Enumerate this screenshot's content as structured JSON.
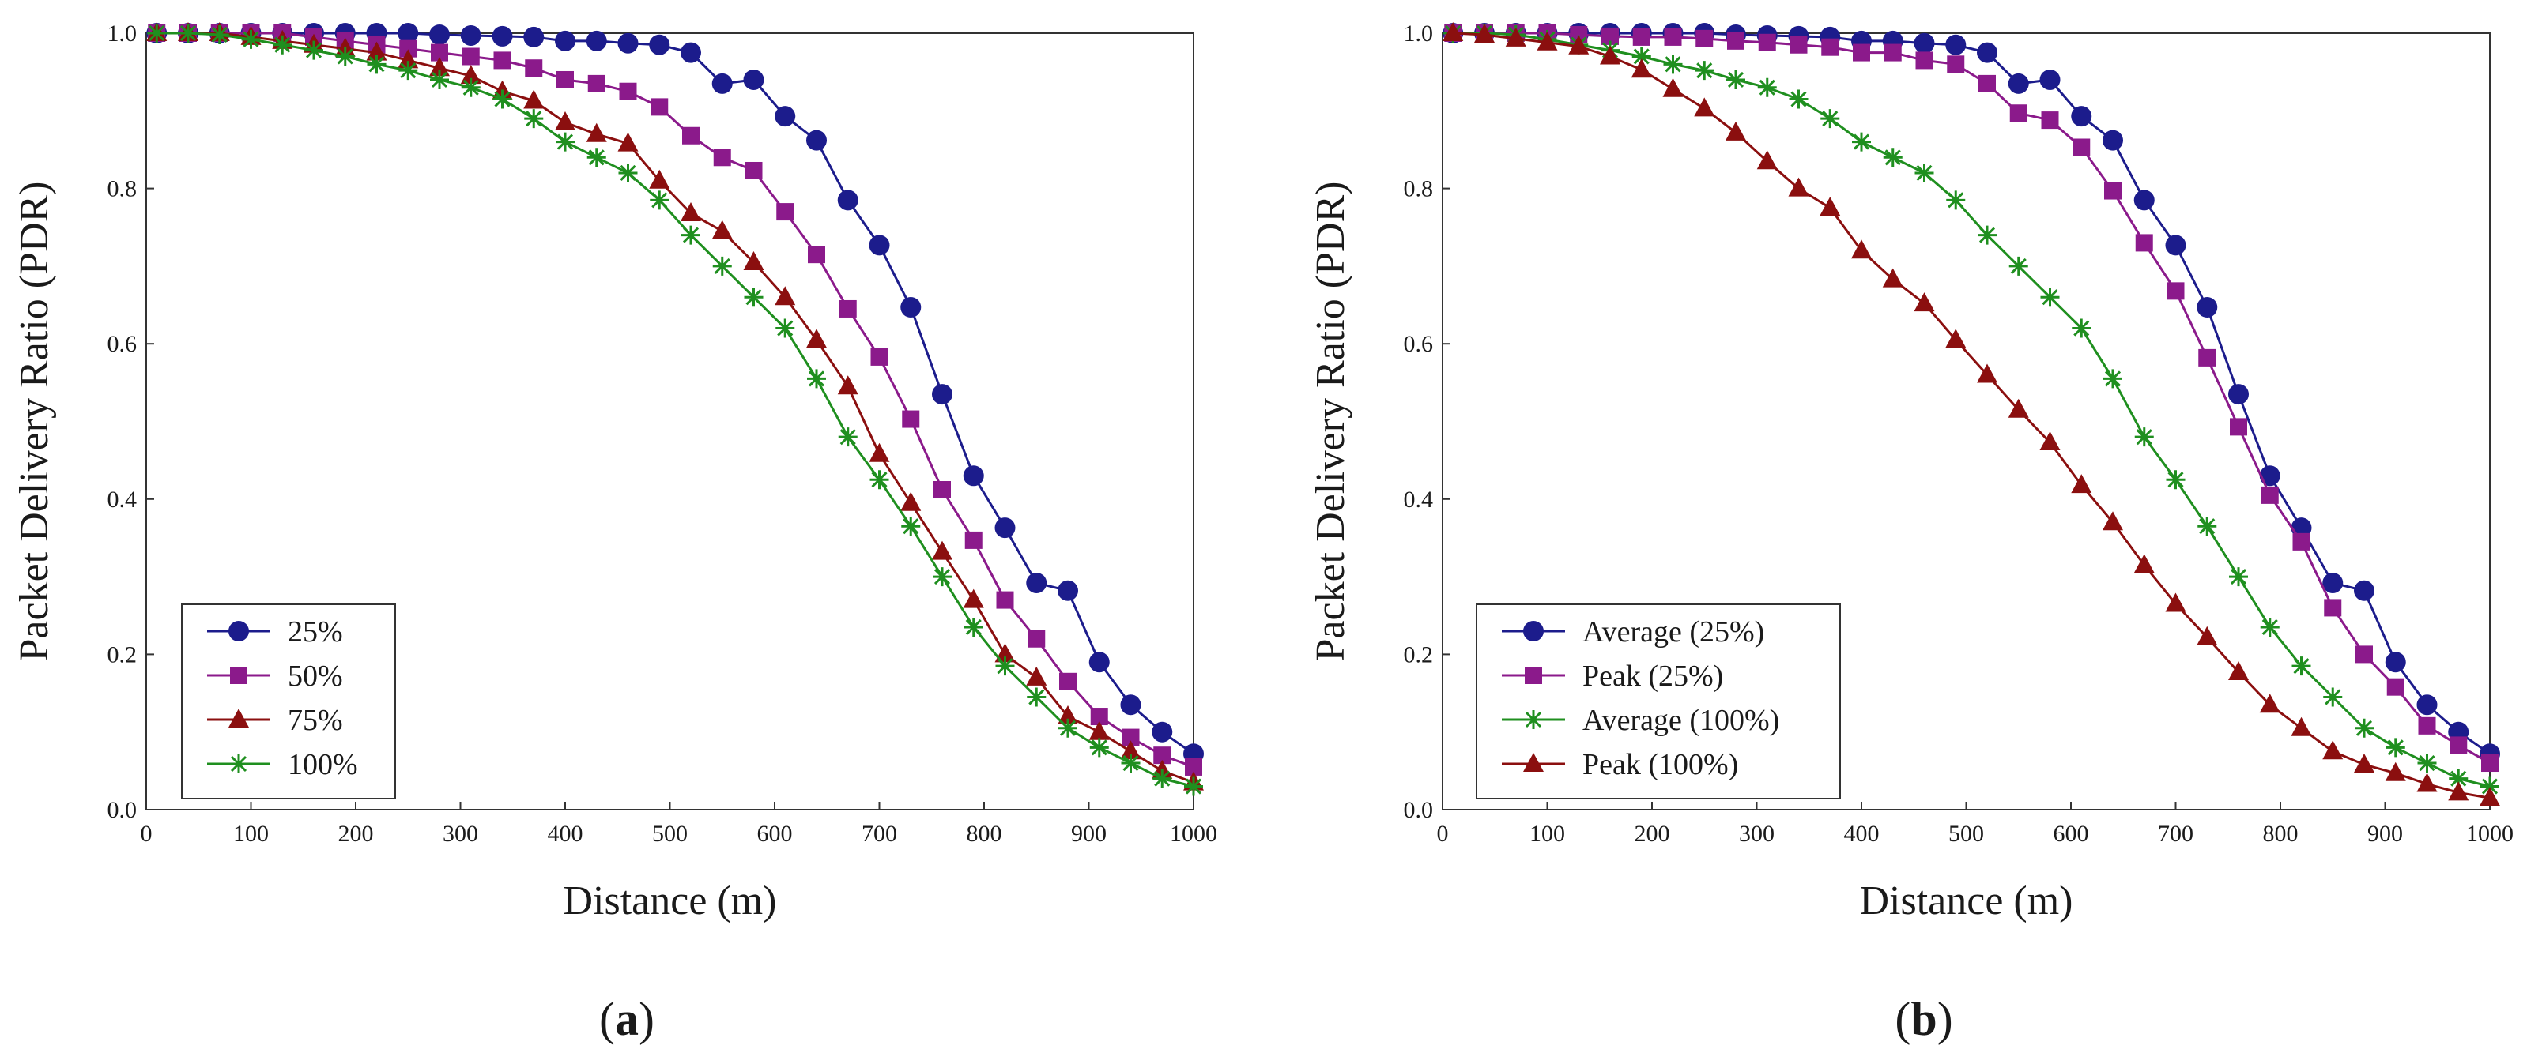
{
  "figure": {
    "panels": [
      {
        "label_open": "(",
        "label_letter": "a",
        "label_close": ")"
      },
      {
        "label_open": "(",
        "label_letter": "b",
        "label_close": ")"
      }
    ]
  },
  "colors": {
    "blue": "#1c1c8c",
    "purple": "#8b1a8b",
    "darkred": "#8b0f0f",
    "green": "#1f8f1f",
    "axis": "#333333"
  },
  "chart_data": [
    {
      "type": "line",
      "panel": "a",
      "xlabel": "Distance (m)",
      "ylabel": "Packet Delivery Ratio (PDR)",
      "xlim": [
        0,
        1000
      ],
      "ylim": [
        0,
        1
      ],
      "xticks": [
        "0",
        "100",
        "200",
        "300",
        "400",
        "500",
        "600",
        "700",
        "800",
        "900",
        "1000"
      ],
      "yticks": [
        "0.0",
        "0.2",
        "0.4",
        "0.6",
        "0.8",
        "1.0"
      ],
      "grid": false,
      "legend_position": "bottom-left",
      "x": [
        10,
        40,
        70,
        100,
        130,
        160,
        190,
        220,
        250,
        280,
        310,
        340,
        370,
        400,
        430,
        460,
        490,
        520,
        550,
        580,
        610,
        640,
        670,
        700,
        730,
        760,
        790,
        820,
        850,
        880,
        910,
        940,
        970,
        1000
      ],
      "series": [
        {
          "name": "25%",
          "color": "blue",
          "marker": "circle",
          "values": [
            1.0,
            1.0,
            1.0,
            1.0,
            1.0,
            1.0,
            1.0,
            1.0,
            1.0,
            0.998,
            0.997,
            0.996,
            0.995,
            0.99,
            0.99,
            0.987,
            0.985,
            0.975,
            0.935,
            0.94,
            0.893,
            0.862,
            0.785,
            0.727,
            0.647,
            0.535,
            0.43,
            0.363,
            0.292,
            0.282,
            0.19,
            0.135,
            0.1,
            0.072
          ]
        },
        {
          "name": "50%",
          "color": "purple",
          "marker": "square",
          "values": [
            1.0,
            1.0,
            1.0,
            1.0,
            1.0,
            0.995,
            0.99,
            0.985,
            0.98,
            0.975,
            0.97,
            0.965,
            0.955,
            0.94,
            0.935,
            0.925,
            0.905,
            0.868,
            0.84,
            0.823,
            0.77,
            0.715,
            0.645,
            0.583,
            0.503,
            0.412,
            0.347,
            0.27,
            0.22,
            0.165,
            0.12,
            0.093,
            0.07,
            0.055
          ]
        },
        {
          "name": "75%",
          "color": "darkred",
          "marker": "triangle",
          "values": [
            1.0,
            1.0,
            1.0,
            0.995,
            0.99,
            0.985,
            0.98,
            0.975,
            0.965,
            0.955,
            0.945,
            0.925,
            0.913,
            0.885,
            0.87,
            0.858,
            0.81,
            0.768,
            0.745,
            0.705,
            0.66,
            0.605,
            0.545,
            0.458,
            0.395,
            0.332,
            0.27,
            0.2,
            0.17,
            0.12,
            0.1,
            0.075,
            0.05,
            0.035
          ]
        },
        {
          "name": "100%",
          "color": "green",
          "marker": "star",
          "values": [
            1.0,
            1.0,
            0.998,
            0.992,
            0.985,
            0.978,
            0.97,
            0.96,
            0.952,
            0.94,
            0.93,
            0.915,
            0.89,
            0.86,
            0.84,
            0.82,
            0.785,
            0.74,
            0.7,
            0.66,
            0.62,
            0.555,
            0.48,
            0.425,
            0.365,
            0.3,
            0.235,
            0.185,
            0.145,
            0.105,
            0.08,
            0.06,
            0.04,
            0.03
          ]
        }
      ]
    },
    {
      "type": "line",
      "panel": "b",
      "xlabel": "Distance (m)",
      "ylabel": "Packet Delivery Ratio (PDR)",
      "xlim": [
        0,
        1000
      ],
      "ylim": [
        0,
        1
      ],
      "xticks": [
        "0",
        "100",
        "200",
        "300",
        "400",
        "500",
        "600",
        "700",
        "800",
        "900",
        "1000"
      ],
      "yticks": [
        "0.0",
        "0.2",
        "0.4",
        "0.6",
        "0.8",
        "1.0"
      ],
      "grid": false,
      "legend_position": "bottom-left",
      "x": [
        10,
        40,
        70,
        100,
        130,
        160,
        190,
        220,
        250,
        280,
        310,
        340,
        370,
        400,
        430,
        460,
        490,
        520,
        550,
        580,
        610,
        640,
        670,
        700,
        730,
        760,
        790,
        820,
        850,
        880,
        910,
        940,
        970,
        1000
      ],
      "series": [
        {
          "name": "Average (25%)",
          "color": "blue",
          "marker": "circle",
          "values": [
            1.0,
            1.0,
            1.0,
            1.0,
            1.0,
            1.0,
            1.0,
            1.0,
            1.0,
            0.998,
            0.997,
            0.996,
            0.995,
            0.99,
            0.99,
            0.987,
            0.985,
            0.975,
            0.935,
            0.94,
            0.893,
            0.862,
            0.785,
            0.727,
            0.647,
            0.535,
            0.43,
            0.363,
            0.292,
            0.282,
            0.19,
            0.135,
            0.1,
            0.072
          ]
        },
        {
          "name": "Peak (25%)",
          "color": "purple",
          "marker": "square",
          "values": [
            1.0,
            1.0,
            1.0,
            1.0,
            0.998,
            0.996,
            0.995,
            0.995,
            0.993,
            0.99,
            0.988,
            0.985,
            0.982,
            0.975,
            0.975,
            0.965,
            0.96,
            0.935,
            0.897,
            0.888,
            0.853,
            0.797,
            0.73,
            0.668,
            0.582,
            0.493,
            0.405,
            0.345,
            0.26,
            0.2,
            0.158,
            0.108,
            0.083,
            0.06
          ]
        },
        {
          "name": "Average (100%)",
          "color": "green",
          "marker": "star",
          "values": [
            1.0,
            1.0,
            0.998,
            0.992,
            0.985,
            0.978,
            0.97,
            0.96,
            0.952,
            0.94,
            0.93,
            0.915,
            0.89,
            0.86,
            0.84,
            0.82,
            0.785,
            0.74,
            0.7,
            0.66,
            0.62,
            0.555,
            0.48,
            0.425,
            0.365,
            0.3,
            0.235,
            0.185,
            0.145,
            0.105,
            0.08,
            0.06,
            0.04,
            0.03
          ]
        },
        {
          "name": "Peak (100%)",
          "color": "darkred",
          "marker": "triangle",
          "values": [
            1.0,
            0.998,
            0.993,
            0.988,
            0.983,
            0.97,
            0.953,
            0.928,
            0.903,
            0.872,
            0.835,
            0.8,
            0.775,
            0.72,
            0.683,
            0.652,
            0.605,
            0.56,
            0.515,
            0.473,
            0.418,
            0.37,
            0.315,
            0.265,
            0.222,
            0.177,
            0.135,
            0.105,
            0.075,
            0.058,
            0.047,
            0.033,
            0.022,
            0.015
          ]
        }
      ]
    }
  ]
}
